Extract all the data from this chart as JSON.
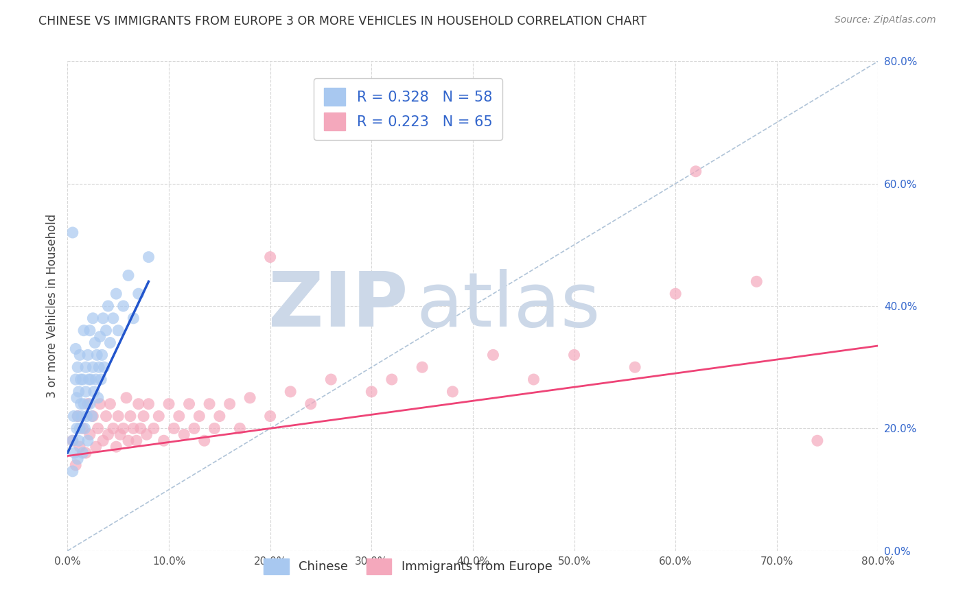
{
  "title": "CHINESE VS IMMIGRANTS FROM EUROPE 3 OR MORE VEHICLES IN HOUSEHOLD CORRELATION CHART",
  "source": "Source: ZipAtlas.com",
  "ylabel": "3 or more Vehicles in Household",
  "xmin": 0.0,
  "xmax": 0.8,
  "ymin": 0.0,
  "ymax": 0.8,
  "xticks": [
    0.0,
    0.1,
    0.2,
    0.3,
    0.4,
    0.5,
    0.6,
    0.7,
    0.8
  ],
  "yticks": [
    0.0,
    0.2,
    0.4,
    0.6,
    0.8
  ],
  "legend_labels": [
    "Chinese",
    "Immigrants from Europe"
  ],
  "blue_R": 0.328,
  "blue_N": 58,
  "pink_R": 0.223,
  "pink_N": 65,
  "blue_color": "#a8c8f0",
  "pink_color": "#f4a8bc",
  "blue_line_color": "#2255cc",
  "pink_line_color": "#ee4477",
  "ref_line_color": "#b0c4d8",
  "grid_color": "#d8d8d8",
  "background_color": "#ffffff",
  "watermark_color": "#ccd8e8",
  "title_color": "#333333",
  "stat_color": "#3366cc",
  "tick_color": "#3366cc",
  "xtick_color": "#555555",
  "blue_scatter_x": [
    0.005,
    0.005,
    0.006,
    0.007,
    0.008,
    0.008,
    0.009,
    0.009,
    0.01,
    0.01,
    0.01,
    0.011,
    0.011,
    0.012,
    0.012,
    0.013,
    0.013,
    0.014,
    0.015,
    0.015,
    0.016,
    0.016,
    0.017,
    0.018,
    0.018,
    0.019,
    0.02,
    0.02,
    0.021,
    0.022,
    0.022,
    0.023,
    0.024,
    0.025,
    0.025,
    0.026,
    0.027,
    0.028,
    0.029,
    0.03,
    0.031,
    0.032,
    0.033,
    0.034,
    0.035,
    0.036,
    0.038,
    0.04,
    0.042,
    0.045,
    0.048,
    0.05,
    0.055,
    0.06,
    0.065,
    0.07,
    0.08,
    0.005
  ],
  "blue_scatter_y": [
    0.13,
    0.18,
    0.22,
    0.16,
    0.28,
    0.33,
    0.2,
    0.25,
    0.15,
    0.22,
    0.3,
    0.18,
    0.26,
    0.2,
    0.32,
    0.24,
    0.28,
    0.22,
    0.16,
    0.28,
    0.24,
    0.36,
    0.2,
    0.3,
    0.26,
    0.22,
    0.18,
    0.32,
    0.28,
    0.24,
    0.36,
    0.28,
    0.22,
    0.3,
    0.38,
    0.26,
    0.34,
    0.28,
    0.32,
    0.25,
    0.3,
    0.35,
    0.28,
    0.32,
    0.38,
    0.3,
    0.36,
    0.4,
    0.34,
    0.38,
    0.42,
    0.36,
    0.4,
    0.45,
    0.38,
    0.42,
    0.48,
    0.52
  ],
  "pink_scatter_x": [
    0.005,
    0.008,
    0.01,
    0.012,
    0.015,
    0.018,
    0.02,
    0.022,
    0.025,
    0.028,
    0.03,
    0.032,
    0.035,
    0.038,
    0.04,
    0.042,
    0.045,
    0.048,
    0.05,
    0.052,
    0.055,
    0.058,
    0.06,
    0.062,
    0.065,
    0.068,
    0.07,
    0.072,
    0.075,
    0.078,
    0.08,
    0.085,
    0.09,
    0.095,
    0.1,
    0.105,
    0.11,
    0.115,
    0.12,
    0.125,
    0.13,
    0.135,
    0.14,
    0.145,
    0.15,
    0.16,
    0.17,
    0.18,
    0.2,
    0.22,
    0.24,
    0.26,
    0.3,
    0.32,
    0.35,
    0.38,
    0.42,
    0.46,
    0.5,
    0.56,
    0.62,
    0.68,
    0.74,
    0.6,
    0.2
  ],
  "pink_scatter_y": [
    0.18,
    0.14,
    0.22,
    0.17,
    0.2,
    0.16,
    0.24,
    0.19,
    0.22,
    0.17,
    0.2,
    0.24,
    0.18,
    0.22,
    0.19,
    0.24,
    0.2,
    0.17,
    0.22,
    0.19,
    0.2,
    0.25,
    0.18,
    0.22,
    0.2,
    0.18,
    0.24,
    0.2,
    0.22,
    0.19,
    0.24,
    0.2,
    0.22,
    0.18,
    0.24,
    0.2,
    0.22,
    0.19,
    0.24,
    0.2,
    0.22,
    0.18,
    0.24,
    0.2,
    0.22,
    0.24,
    0.2,
    0.25,
    0.22,
    0.26,
    0.24,
    0.28,
    0.26,
    0.28,
    0.3,
    0.26,
    0.32,
    0.28,
    0.32,
    0.3,
    0.62,
    0.44,
    0.18,
    0.42,
    0.48
  ],
  "blue_trend_x0": 0.0,
  "blue_trend_x1": 0.08,
  "blue_trend_y0": 0.16,
  "blue_trend_y1": 0.44,
  "pink_trend_x0": 0.0,
  "pink_trend_x1": 0.8,
  "pink_trend_y0": 0.155,
  "pink_trend_y1": 0.335
}
